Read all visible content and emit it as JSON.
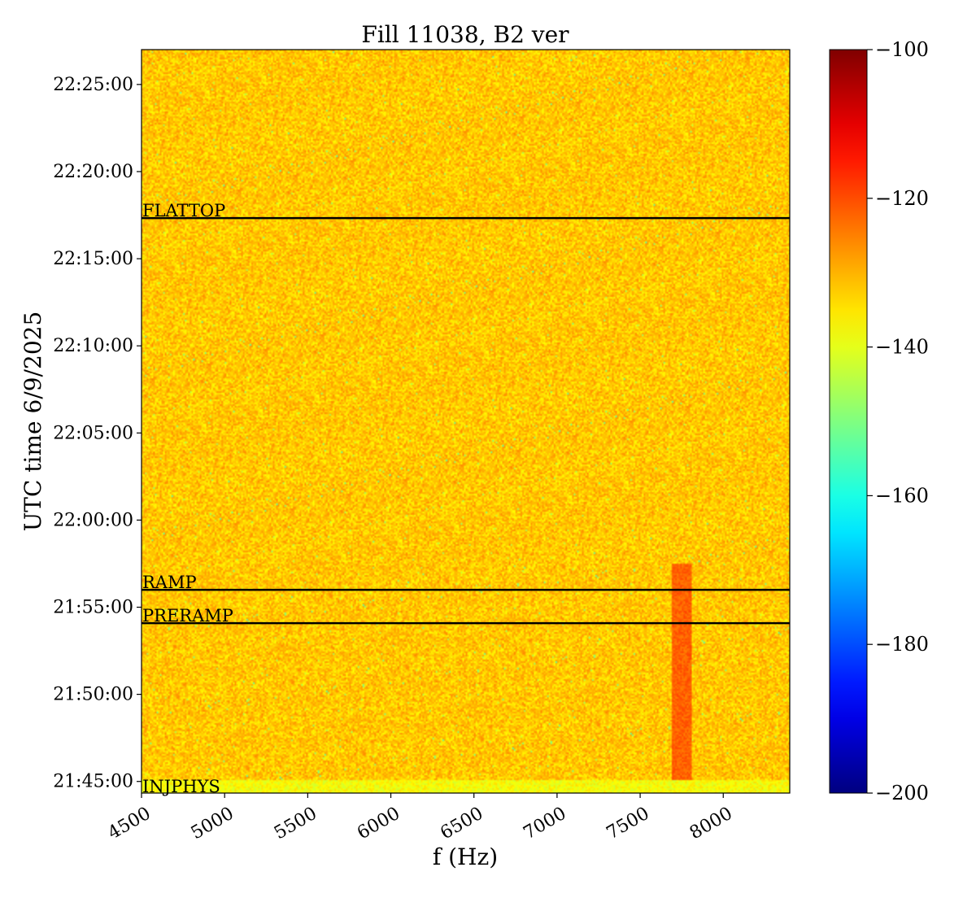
{
  "chart_data": {
    "type": "heatmap",
    "title": "Fill 11038, B2 ver",
    "xlabel": "f (Hz)",
    "ylabel": "UTC time 6/9/2025",
    "xlim": [
      4500,
      8400
    ],
    "x_ticks": [
      4500,
      5000,
      5500,
      6000,
      6500,
      7000,
      7500,
      8000
    ],
    "y_ticks": [
      "21:45:00",
      "21:50:00",
      "21:55:00",
      "22:00:00",
      "22:05:00",
      "22:10:00",
      "22:15:00",
      "22:20:00",
      "22:25:00"
    ],
    "ylim": [
      "21:44:20",
      "22:27:00"
    ],
    "colorbar": {
      "colormap": "jet",
      "range": [
        -200,
        -100
      ],
      "ticks": [
        -100,
        -120,
        -140,
        -160,
        -180,
        -200
      ],
      "tick_labels": [
        "−100",
        "−120",
        "−140",
        "−160",
        "−180",
        "−200"
      ]
    },
    "background_level": -132,
    "markers": [
      {
        "label": "FLATTOP",
        "time": "22:17:20"
      },
      {
        "label": "RAMP",
        "time": "21:56:00"
      },
      {
        "label": "PRERAMP",
        "time": "21:54:05"
      },
      {
        "label": "INJPHYS",
        "time": "21:44:20"
      }
    ],
    "features": [
      {
        "note": "stronger narrowband line",
        "f": 7750,
        "time_range": [
          "21:45:00",
          "21:57:30"
        ],
        "level": -122
      }
    ]
  }
}
